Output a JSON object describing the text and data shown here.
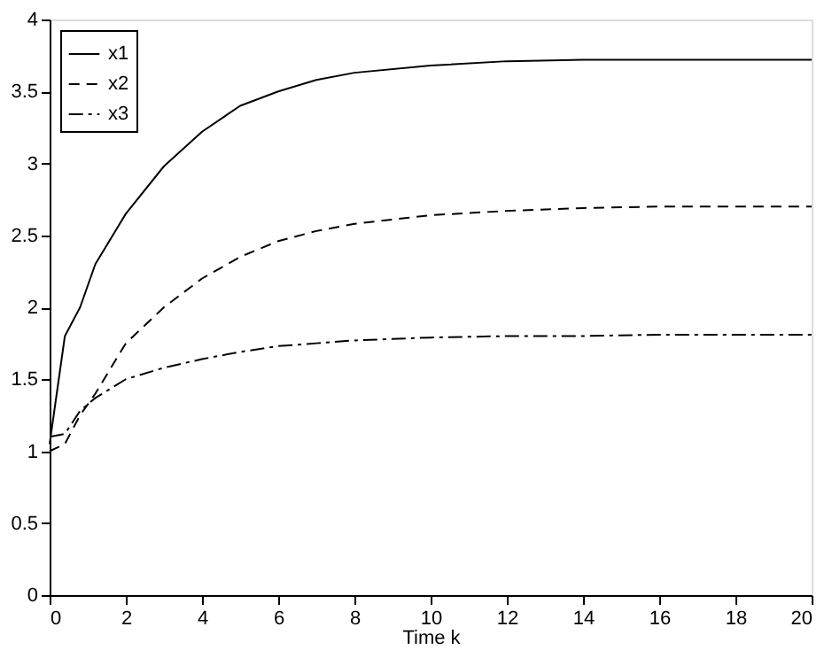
{
  "chart_data": {
    "type": "line",
    "xlabel": "Time k",
    "x": [
      0,
      0.4,
      0.8,
      1.2,
      2,
      3,
      4,
      5,
      6,
      7,
      8,
      10,
      12,
      14,
      16,
      18,
      20
    ],
    "series": [
      {
        "name": "x1",
        "color": "#000000",
        "line_style": "solid",
        "values": [
          1.05,
          1.8,
          2.0,
          2.3,
          2.65,
          2.98,
          3.22,
          3.4,
          3.5,
          3.58,
          3.63,
          3.68,
          3.71,
          3.72,
          3.72,
          3.72,
          3.72
        ]
      },
      {
        "name": "x2",
        "color": "#000000",
        "line_style": "dashed",
        "values": [
          1.0,
          1.05,
          1.25,
          1.4,
          1.75,
          2.0,
          2.2,
          2.35,
          2.46,
          2.53,
          2.58,
          2.64,
          2.67,
          2.69,
          2.7,
          2.7,
          2.7
        ]
      },
      {
        "name": "x3",
        "color": "#000000",
        "line_style": "dashdot",
        "values": [
          1.1,
          1.12,
          1.28,
          1.37,
          1.5,
          1.58,
          1.64,
          1.69,
          1.73,
          1.75,
          1.77,
          1.79,
          1.8,
          1.8,
          1.81,
          1.81,
          1.81
        ]
      }
    ],
    "xlim": [
      0,
      20
    ],
    "xticks": [
      0,
      2,
      4,
      6,
      8,
      10,
      12,
      14,
      16,
      18,
      20
    ],
    "ylim": [
      0,
      4
    ],
    "yticks": [
      0,
      0.5,
      1,
      1.5,
      2,
      2.5,
      3,
      3.5,
      4
    ],
    "grid": false,
    "legend": "top left"
  }
}
